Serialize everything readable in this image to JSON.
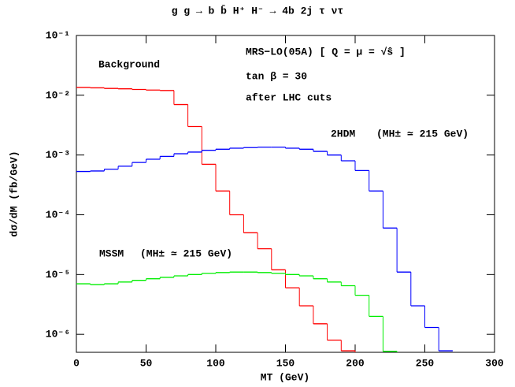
{
  "chart_data": {
    "type": "histogram",
    "title": "g g → b b̄ H⁺ H⁻ → 4b 2j τ ντ",
    "x_label": "MT (GeV)",
    "y_label": "dσ/dM (fb/GeV)",
    "annotations": [
      "MRS−LO(05A) [ Q = μ = √ŝ ]",
      "tan β = 30",
      "after LHC cuts",
      "(MH± ≃ 215 GeV)",
      "(MH± ≃ 215 GeV)"
    ],
    "bins": [
      0,
      10,
      20,
      30,
      40,
      50,
      60,
      70,
      80,
      90,
      100,
      110,
      120,
      130,
      140,
      150,
      160,
      170,
      180,
      190,
      200,
      210,
      220,
      230,
      240,
      250,
      260,
      270
    ],
    "series": [
      {
        "name": "Background",
        "color": "#ff0000",
        "values": [
          0.0135,
          0.0133,
          0.013,
          0.0128,
          0.0125,
          0.0122,
          0.012,
          0.007,
          0.003,
          0.0007,
          0.00025,
          0.0001,
          5e-05,
          2.7e-05,
          1.2e-05,
          6e-06,
          3e-06,
          1.5e-06,
          8e-07,
          5.3e-07,
          null,
          null,
          null,
          null,
          null,
          null,
          null
        ]
      },
      {
        "name": "2HDM",
        "color": "#0000ff",
        "values": [
          0.00053,
          0.00054,
          0.00058,
          0.00065,
          0.00075,
          0.00085,
          0.00095,
          0.00105,
          0.00112,
          0.0012,
          0.00125,
          0.0013,
          0.00133,
          0.00135,
          0.00135,
          0.0013,
          0.00125,
          0.00115,
          0.001,
          0.0008,
          0.00055,
          0.00025,
          6e-05,
          1.1e-05,
          3e-06,
          1.3e-06,
          5.3e-07
        ]
      },
      {
        "name": "MSSM",
        "color": "#00ee00",
        "values": [
          7e-06,
          6.8e-06,
          7e-06,
          7.5e-06,
          8e-06,
          8.5e-06,
          9e-06,
          9.5e-06,
          1e-05,
          1.05e-05,
          1.08e-05,
          1.1e-05,
          1.1e-05,
          1.08e-05,
          1.05e-05,
          1e-05,
          9.5e-06,
          8.5e-06,
          7.5e-06,
          6.5e-06,
          4.5e-06,
          2e-06,
          5.2e-07,
          null,
          null,
          null,
          null
        ]
      }
    ],
    "xlim": [
      0,
      300
    ],
    "xticks": [
      0,
      50,
      100,
      150,
      200,
      250,
      300
    ],
    "ylim": [
      5e-07,
      0.1
    ],
    "log_y": true,
    "yticks": [
      {
        "value": 0.1,
        "label": "10⁻¹"
      },
      {
        "value": 0.01,
        "label": "10⁻²"
      },
      {
        "value": 0.001,
        "label": "10⁻³"
      },
      {
        "value": 0.0001,
        "label": "10⁻⁴"
      },
      {
        "value": 1e-05,
        "label": "10⁻⁵"
      },
      {
        "value": 1e-06,
        "label": "10⁻⁶"
      }
    ]
  }
}
